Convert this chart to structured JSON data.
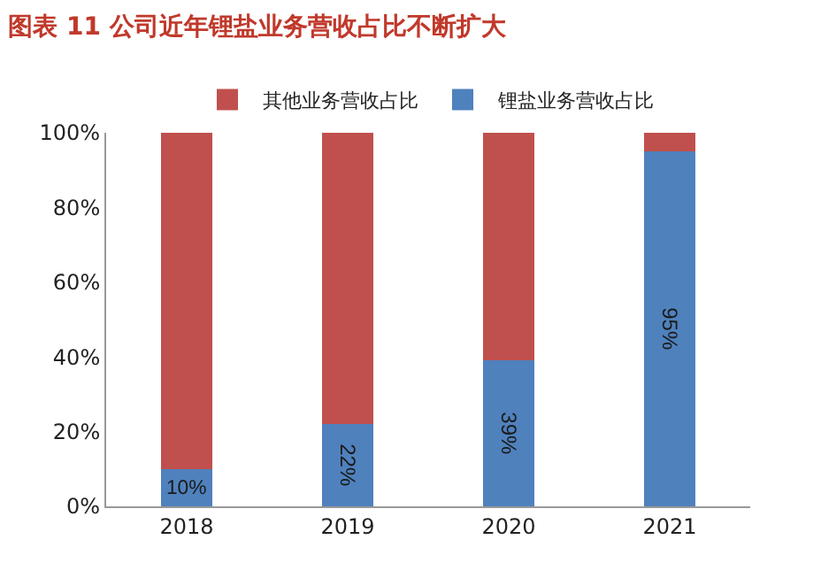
{
  "chart_data": {
    "type": "bar",
    "title": "图表 11 公司近年锂盐业务营收占比不断扩大",
    "stacked": true,
    "legend": "top",
    "categories": [
      "2018",
      "2019",
      "2020",
      "2021"
    ],
    "series": [
      {
        "name": "锂盐业务营收占比",
        "color": "#4f81bd",
        "values": [
          10,
          22,
          39,
          95
        ],
        "value_labels": [
          "10%",
          "22%",
          "39%",
          "95%"
        ]
      },
      {
        "name": "其他业务营收占比",
        "color": "#c0504d",
        "values": [
          90,
          78,
          61,
          5
        ]
      }
    ],
    "ylim": [
      0,
      100
    ],
    "yticks": [
      {
        "value": 0,
        "label": "0%"
      },
      {
        "value": 20,
        "label": "20%"
      },
      {
        "value": 40,
        "label": "40%"
      },
      {
        "value": 60,
        "label": "60%"
      },
      {
        "value": 80,
        "label": "80%"
      },
      {
        "value": 100,
        "label": "100%"
      }
    ]
  }
}
